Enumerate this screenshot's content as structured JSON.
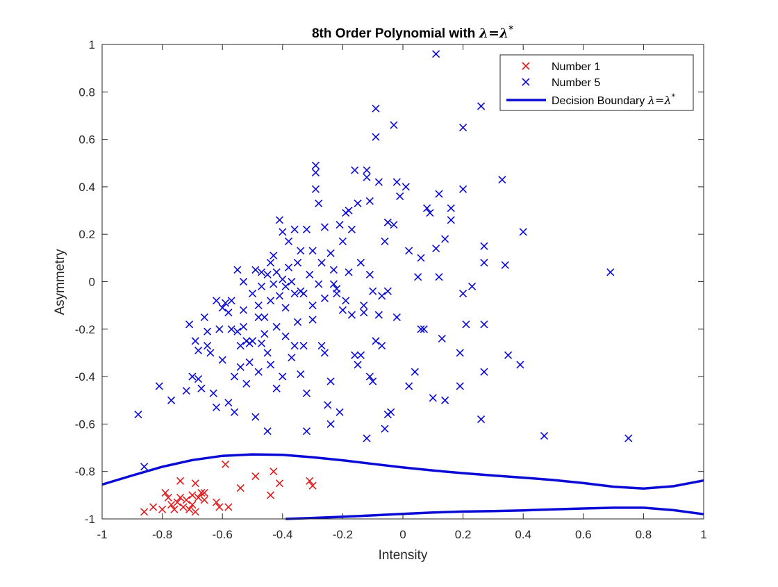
{
  "chart_data": {
    "type": "scatter",
    "title_prefix": "8th Order Polynomial with ",
    "title_lambda": "λ=λ",
    "title_star": "*",
    "xlabel": "Intensity",
    "ylabel": "Asymmetry",
    "xlim": [
      -1,
      1
    ],
    "ylim": [
      -1,
      1
    ],
    "xticks": [
      -1,
      -0.8,
      -0.6,
      -0.4,
      -0.2,
      0,
      0.2,
      0.4,
      0.6,
      0.8,
      1
    ],
    "xtick_labels": [
      "-1",
      "-0.8",
      "-0.6",
      "-0.4",
      "-0.2",
      "0",
      "0.2",
      "0.4",
      "0.6",
      "0.8",
      "1"
    ],
    "yticks": [
      -1,
      -0.8,
      -0.6,
      -0.4,
      -0.2,
      0,
      0.2,
      0.4,
      0.6,
      0.8,
      1
    ],
    "ytick_labels": [
      "-1",
      "-0.8",
      "-0.6",
      "-0.4",
      "-0.2",
      "0",
      "0.2",
      "0.4",
      "0.6",
      "0.8",
      "1"
    ],
    "grid": false,
    "box": true,
    "legend_position": "top-right",
    "legend": {
      "number1_label": "Number 1",
      "number5_label": "Number 5",
      "boundary_label_prefix": "Decision Boundary ",
      "boundary_lambda": "λ=λ",
      "boundary_star": "*"
    },
    "series": [
      {
        "name": "Number 1",
        "marker": "x",
        "color": "#e31a1c",
        "points": [
          [
            -0.86,
            -0.97
          ],
          [
            -0.83,
            -0.95
          ],
          [
            -0.8,
            -0.96
          ],
          [
            -0.79,
            -0.89
          ],
          [
            -0.78,
            -0.91
          ],
          [
            -0.77,
            -0.94
          ],
          [
            -0.76,
            -0.96
          ],
          [
            -0.75,
            -0.93
          ],
          [
            -0.74,
            -0.91
          ],
          [
            -0.73,
            -0.95
          ],
          [
            -0.72,
            -0.92
          ],
          [
            -0.71,
            -0.96
          ],
          [
            -0.7,
            -0.94
          ],
          [
            -0.69,
            -0.97
          ],
          [
            -0.68,
            -0.91
          ],
          [
            -0.67,
            -0.89
          ],
          [
            -0.66,
            -0.92
          ],
          [
            -0.66,
            -0.89
          ],
          [
            -0.62,
            -0.93
          ],
          [
            -0.61,
            -0.95
          ],
          [
            -0.58,
            -0.95
          ],
          [
            -0.74,
            -0.84
          ],
          [
            -0.69,
            -0.85
          ],
          [
            -0.59,
            -0.77
          ],
          [
            -0.54,
            -0.87
          ],
          [
            -0.49,
            -0.82
          ],
          [
            -0.43,
            -0.8
          ],
          [
            -0.41,
            -0.85
          ],
          [
            -0.44,
            -0.9
          ],
          [
            -0.31,
            -0.84
          ],
          [
            -0.3,
            -0.86
          ],
          [
            -0.7,
            -0.9
          ]
        ]
      },
      {
        "name": "Number 5",
        "marker": "x",
        "color": "#0a0ad6",
        "points": [
          [
            -0.88,
            -0.56
          ],
          [
            -0.86,
            -0.78
          ],
          [
            -0.81,
            -0.44
          ],
          [
            -0.77,
            -0.5
          ],
          [
            -0.72,
            -0.46
          ],
          [
            -0.71,
            -0.18
          ],
          [
            -0.7,
            -0.4
          ],
          [
            -0.69,
            -0.25
          ],
          [
            -0.68,
            -0.29
          ],
          [
            -0.68,
            -0.41
          ],
          [
            -0.67,
            -0.45
          ],
          [
            -0.66,
            -0.15
          ],
          [
            -0.65,
            -0.21
          ],
          [
            -0.65,
            -0.27
          ],
          [
            -0.64,
            -0.3
          ],
          [
            -0.63,
            -0.47
          ],
          [
            -0.62,
            -0.53
          ],
          [
            -0.61,
            -0.2
          ],
          [
            -0.6,
            -0.33
          ],
          [
            -0.6,
            -0.11
          ],
          [
            -0.59,
            -0.09
          ],
          [
            -0.58,
            -0.13
          ],
          [
            -0.58,
            -0.51
          ],
          [
            -0.57,
            -0.08
          ],
          [
            -0.56,
            -0.4
          ],
          [
            -0.56,
            -0.55
          ],
          [
            -0.55,
            -0.21
          ],
          [
            -0.55,
            0.05
          ],
          [
            -0.54,
            -0.27
          ],
          [
            -0.54,
            -0.36
          ],
          [
            -0.53,
            -0.19
          ],
          [
            -0.53,
            -0.12
          ],
          [
            -0.52,
            -0.25
          ],
          [
            -0.52,
            -0.43
          ],
          [
            -0.51,
            -0.34
          ],
          [
            -0.5,
            -0.05
          ],
          [
            -0.5,
            -0.25
          ],
          [
            -0.49,
            0.05
          ],
          [
            -0.49,
            -0.57
          ],
          [
            -0.48,
            -0.1
          ],
          [
            -0.48,
            -0.38
          ],
          [
            -0.47,
            -0.26
          ],
          [
            -0.47,
            -0.02
          ],
          [
            -0.46,
            -0.15
          ],
          [
            -0.45,
            0.03
          ],
          [
            -0.45,
            -0.3
          ],
          [
            -0.44,
            -0.08
          ],
          [
            -0.44,
            -0.35
          ],
          [
            -0.43,
            0.11
          ],
          [
            -0.43,
            -0.01
          ],
          [
            -0.42,
            -0.19
          ],
          [
            -0.42,
            -0.45
          ],
          [
            -0.41,
            0.26
          ],
          [
            -0.41,
            -0.06
          ],
          [
            -0.4,
            0.21
          ],
          [
            -0.4,
            0.01
          ],
          [
            -0.39,
            -0.11
          ],
          [
            -0.39,
            -0.23
          ],
          [
            -0.38,
            0.17
          ],
          [
            -0.38,
            0.06
          ],
          [
            -0.37,
            0.0
          ],
          [
            -0.37,
            -0.32
          ],
          [
            -0.36,
            -0.05
          ],
          [
            -0.35,
            0.08
          ],
          [
            -0.35,
            -0.17
          ],
          [
            -0.34,
            0.13
          ],
          [
            -0.34,
            -0.04
          ],
          [
            -0.33,
            -0.27
          ],
          [
            -0.32,
            0.22
          ],
          [
            -0.32,
            -0.47
          ],
          [
            -0.31,
            0.03
          ],
          [
            -0.3,
            0.13
          ],
          [
            -0.3,
            -0.1
          ],
          [
            -0.29,
            0.49
          ],
          [
            -0.29,
            0.46
          ],
          [
            -0.28,
            0.33
          ],
          [
            -0.28,
            -0.01
          ],
          [
            -0.27,
            -0.27
          ],
          [
            -0.26,
            0.23
          ],
          [
            -0.26,
            -0.07
          ],
          [
            -0.25,
            -0.52
          ],
          [
            -0.24,
            0.12
          ],
          [
            -0.24,
            -0.42
          ],
          [
            -0.23,
            0.05
          ],
          [
            -0.22,
            -0.05
          ],
          [
            -0.21,
            0.24
          ],
          [
            -0.21,
            -0.55
          ],
          [
            -0.2,
            0.17
          ],
          [
            -0.19,
            -0.08
          ],
          [
            -0.19,
            0.29
          ],
          [
            -0.18,
            0.04
          ],
          [
            -0.17,
            -0.14
          ],
          [
            -0.16,
            0.47
          ],
          [
            -0.15,
            0.33
          ],
          [
            -0.15,
            -0.35
          ],
          [
            -0.14,
            0.08
          ],
          [
            -0.13,
            -0.13
          ],
          [
            -0.12,
            0.47
          ],
          [
            -0.12,
            0.44
          ],
          [
            -0.11,
            -0.4
          ],
          [
            -0.11,
            0.34
          ],
          [
            -0.1,
            -0.04
          ],
          [
            -0.09,
            0.61
          ],
          [
            -0.09,
            0.73
          ],
          [
            -0.09,
            -0.25
          ],
          [
            -0.08,
            0.42
          ],
          [
            -0.07,
            -0.06
          ],
          [
            -0.07,
            -0.27
          ],
          [
            -0.06,
            -0.62
          ],
          [
            -0.05,
            0.25
          ],
          [
            -0.05,
            -0.04
          ],
          [
            -0.04,
            -0.55
          ],
          [
            -0.03,
            0.66
          ],
          [
            -0.03,
            0.24
          ],
          [
            -0.02,
            0.42
          ],
          [
            -0.02,
            -0.15
          ],
          [
            0.01,
            0.4
          ],
          [
            0.02,
            0.13
          ],
          [
            0.04,
            -0.38
          ],
          [
            0.06,
            0.1
          ],
          [
            0.07,
            -0.2
          ],
          [
            0.08,
            0.31
          ],
          [
            0.09,
            0.29
          ],
          [
            0.1,
            -0.49
          ],
          [
            0.11,
            0.96
          ],
          [
            0.11,
            0.14
          ],
          [
            0.12,
            0.37
          ],
          [
            0.13,
            -0.24
          ],
          [
            0.14,
            0.18
          ],
          [
            0.14,
            -0.5
          ],
          [
            0.16,
            0.31
          ],
          [
            0.16,
            0.26
          ],
          [
            0.19,
            -0.44
          ],
          [
            0.2,
            0.65
          ],
          [
            0.2,
            0.39
          ],
          [
            0.2,
            -0.05
          ],
          [
            0.21,
            -0.18
          ],
          [
            0.23,
            -0.02
          ],
          [
            0.26,
            0.74
          ],
          [
            0.26,
            -0.58
          ],
          [
            0.27,
            0.08
          ],
          [
            0.27,
            0.15
          ],
          [
            0.27,
            -0.38
          ],
          [
            0.27,
            -0.18
          ],
          [
            0.33,
            0.43
          ],
          [
            0.34,
            0.07
          ],
          [
            0.35,
            -0.31
          ],
          [
            0.39,
            -0.35
          ],
          [
            0.4,
            0.21
          ],
          [
            0.47,
            -0.65
          ],
          [
            0.69,
            0.04
          ],
          [
            0.75,
            -0.66
          ],
          [
            -0.32,
            -0.63
          ],
          [
            -0.12,
            -0.66
          ],
          [
            -0.45,
            -0.63
          ],
          [
            -0.62,
            -0.08
          ],
          [
            -0.57,
            -0.2
          ],
          [
            -0.51,
            -0.26
          ],
          [
            -0.4,
            -0.4
          ],
          [
            -0.36,
            0.22
          ],
          [
            -0.29,
            0.39
          ],
          [
            -0.22,
            -0.03
          ],
          [
            -0.18,
            0.3
          ],
          [
            -0.16,
            -0.31
          ],
          [
            -0.13,
            -0.1
          ],
          [
            -0.1,
            -0.42
          ],
          [
            -0.05,
            -0.56
          ],
          [
            0.05,
            0.02
          ],
          [
            -0.48,
            -0.15
          ],
          [
            -0.46,
            -0.22
          ],
          [
            -0.44,
            0.08
          ],
          [
            -0.42,
            0.04
          ],
          [
            -0.36,
            -0.27
          ],
          [
            -0.34,
            -0.39
          ],
          [
            -0.3,
            -0.16
          ],
          [
            -0.26,
            -0.3
          ],
          [
            -0.24,
            -0.6
          ],
          [
            -0.2,
            -0.12
          ],
          [
            -0.14,
            -0.31
          ],
          [
            -0.08,
            -0.14
          ],
          [
            0.02,
            -0.44
          ],
          [
            0.06,
            -0.2
          ],
          [
            0.12,
            0.02
          ],
          [
            0.19,
            -0.3
          ],
          [
            -0.53,
            0.0
          ],
          [
            -0.47,
            0.04
          ],
          [
            -0.39,
            -0.02
          ],
          [
            -0.33,
            -0.05
          ],
          [
            -0.27,
            0.08
          ],
          [
            -0.23,
            -0.01
          ],
          [
            -0.17,
            0.22
          ],
          [
            -0.11,
            0.03
          ],
          [
            -0.06,
            0.17
          ],
          [
            -0.01,
            0.36
          ]
        ]
      }
    ],
    "decision_boundary": {
      "name": "Decision Boundary",
      "color": "#0a0ad6",
      "curves": [
        {
          "x": [
            -1,
            -0.9,
            -0.8,
            -0.7,
            -0.6,
            -0.5,
            -0.4,
            -0.3,
            -0.2,
            -0.1,
            0,
            0.1,
            0.2,
            0.3,
            0.4,
            0.5,
            0.6,
            0.7,
            0.8,
            0.9,
            1
          ],
          "y": [
            -0.855,
            -0.817,
            -0.78,
            -0.752,
            -0.734,
            -0.728,
            -0.73,
            -0.74,
            -0.753,
            -0.768,
            -0.783,
            -0.796,
            -0.807,
            -0.817,
            -0.826,
            -0.836,
            -0.849,
            -0.864,
            -0.872,
            -0.862,
            -0.838
          ]
        },
        {
          "x": [
            -0.39,
            -0.3,
            -0.2,
            -0.1,
            0,
            0.1,
            0.2,
            0.3,
            0.4,
            0.5,
            0.6,
            0.7,
            0.8,
            0.9,
            1
          ],
          "y": [
            -1.0,
            -0.996,
            -0.991,
            -0.985,
            -0.979,
            -0.973,
            -0.969,
            -0.967,
            -0.964,
            -0.96,
            -0.956,
            -0.953,
            -0.953,
            -0.963,
            -0.98
          ]
        }
      ]
    }
  }
}
